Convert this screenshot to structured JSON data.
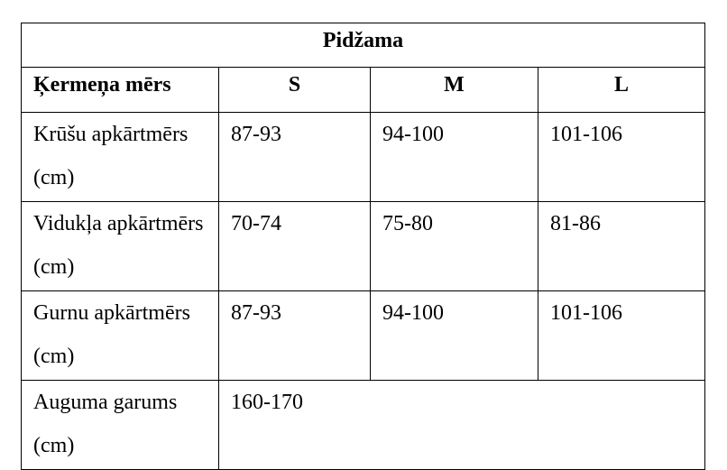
{
  "table": {
    "title": "Pidžama",
    "header": [
      "Ķermeņa mērs",
      "S",
      "M",
      "L"
    ],
    "rows": [
      [
        "Krūšu apkārtmērs (cm)",
        "87-93",
        "94-100",
        "101-106"
      ],
      [
        "Vidukļa apkārtmērs (cm)",
        "70-74",
        "75-80",
        "81-86"
      ],
      [
        "Gurnu apkārtmērs (cm)",
        "87-93",
        "94-100",
        "101-106"
      ],
      [
        "Auguma garums (cm)",
        "160-170"
      ]
    ]
  }
}
